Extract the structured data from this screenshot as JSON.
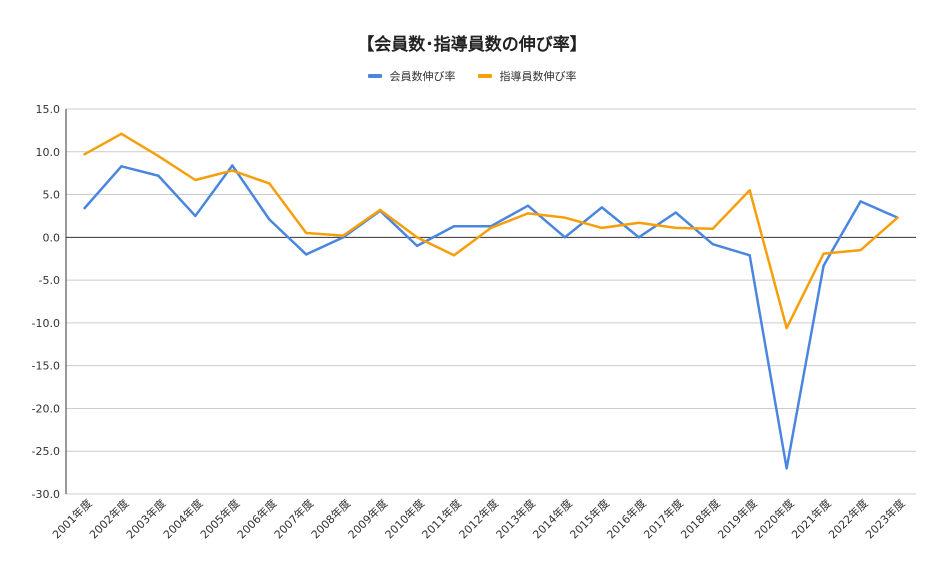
{
  "chart_data": {
    "type": "line",
    "title": "【会員数･指導員数の伸び率】",
    "xlabel": "",
    "ylabel": "",
    "ylim": [
      -30,
      15
    ],
    "yticks": [
      "15.0",
      "10.0",
      "5.0",
      "0.0",
      "-5.0",
      "-10.0",
      "-15.0",
      "-20.0",
      "-25.0",
      "-30.0"
    ],
    "grid": true,
    "legend": "top",
    "categories": [
      "2001年度",
      "2002年度",
      "2003年度",
      "2004年度",
      "2005年度",
      "2006年度",
      "2007年度",
      "2008年度",
      "2009年度",
      "2010年度",
      "2011年度",
      "2012年度",
      "2013年度",
      "2014年度",
      "2015年度",
      "2016年度",
      "2017年度",
      "2018年度",
      "2019年度",
      "2020年度",
      "2021年度",
      "2022年度",
      "2023年度"
    ],
    "series": [
      {
        "name": "会員数伸び率",
        "color": "#4a86e0",
        "values": [
          3.4,
          8.3,
          7.2,
          2.5,
          8.4,
          2.1,
          -2.0,
          0.0,
          3.1,
          -1.0,
          1.3,
          1.3,
          3.7,
          0.0,
          3.5,
          0.0,
          2.9,
          -0.8,
          -2.1,
          -27.0,
          -3.3,
          4.2,
          2.3
        ]
      },
      {
        "name": "指導員数伸び率",
        "color": "#f59f0c",
        "values": [
          9.7,
          12.1,
          9.5,
          6.7,
          7.8,
          6.3,
          0.5,
          0.2,
          3.2,
          0.0,
          -2.1,
          1.1,
          2.8,
          2.3,
          1.1,
          1.7,
          1.1,
          1.0,
          5.5,
          -10.6,
          -1.9,
          -1.5,
          2.3
        ]
      }
    ]
  }
}
